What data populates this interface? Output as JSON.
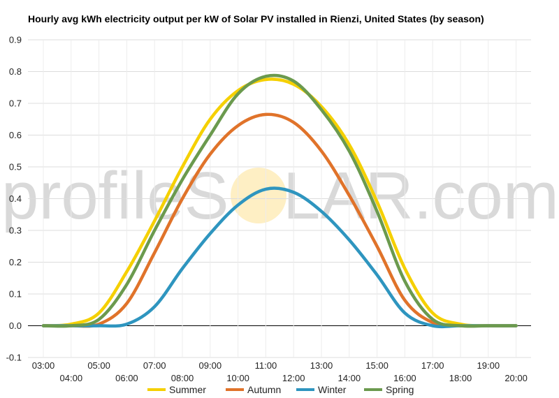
{
  "chart_data": {
    "type": "line",
    "title": "Hourly avg kWh electricity output per kW of Solar PV installed in Rienzi, United States (by season)",
    "watermark": {
      "left": "profileS",
      "right": "LAR.com"
    },
    "x": [
      "03:00",
      "04:00",
      "05:00",
      "06:00",
      "07:00",
      "08:00",
      "09:00",
      "10:00",
      "11:00",
      "12:00",
      "13:00",
      "14:00",
      "15:00",
      "16:00",
      "17:00",
      "18:00",
      "19:00",
      "20:00"
    ],
    "yticks": [
      "-0.1",
      "0.0",
      "0.1",
      "0.2",
      "0.3",
      "0.4",
      "0.5",
      "0.6",
      "0.7",
      "0.8",
      "0.9"
    ],
    "ylim": [
      -0.1,
      0.9
    ],
    "grid": true,
    "legend_position": "bottom",
    "series": [
      {
        "name": "Summer",
        "color": "#f5d000",
        "values": [
          0.0,
          0.005,
          0.04,
          0.17,
          0.33,
          0.5,
          0.65,
          0.74,
          0.775,
          0.76,
          0.69,
          0.57,
          0.39,
          0.18,
          0.04,
          0.005,
          0.0,
          0.0
        ]
      },
      {
        "name": "Autumn",
        "color": "#e0732a",
        "values": [
          0.0,
          0.0,
          0.005,
          0.07,
          0.23,
          0.4,
          0.54,
          0.63,
          0.665,
          0.64,
          0.55,
          0.41,
          0.25,
          0.08,
          0.01,
          0.0,
          0.0,
          0.0
        ]
      },
      {
        "name": "Winter",
        "color": "#2e95bf",
        "values": [
          0.0,
          0.0,
          0.0,
          0.005,
          0.06,
          0.18,
          0.29,
          0.38,
          0.43,
          0.42,
          0.36,
          0.27,
          0.16,
          0.04,
          0.0,
          0.0,
          0.0,
          0.0
        ]
      },
      {
        "name": "Spring",
        "color": "#6b9a4e",
        "values": [
          0.0,
          0.0,
          0.02,
          0.13,
          0.3,
          0.46,
          0.6,
          0.73,
          0.785,
          0.77,
          0.68,
          0.55,
          0.36,
          0.14,
          0.02,
          0.0,
          0.0,
          0.0
        ]
      }
    ]
  }
}
